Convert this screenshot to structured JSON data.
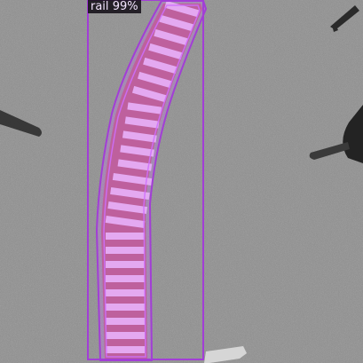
{
  "detection": {
    "class_name": "rail",
    "confidence": "99%",
    "box_color": "#a23ed6",
    "mask_color": "#cf6fff",
    "label_background": "#141018",
    "label_text_color": "#f3e4ff"
  },
  "scene": {
    "ground_color": "#8d8d8d",
    "track_color": "#b85a78",
    "sleeper_color": "#f0c8f6"
  }
}
